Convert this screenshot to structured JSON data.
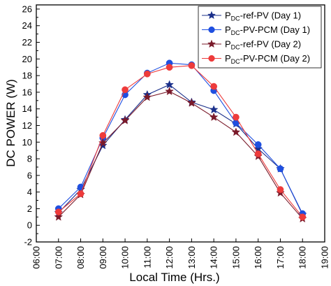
{
  "chart_data": {
    "type": "line",
    "xlabel": "Local Time (Hrs.)",
    "ylabel": "DC POWER (W)",
    "x_ticks": [
      "06:00",
      "07:00",
      "08:00",
      "09:00",
      "10:00",
      "11:00",
      "12:00",
      "13:00",
      "14:00",
      "15:00",
      "16:00",
      "17:00",
      "18:00",
      "19:00"
    ],
    "y_ticks": [
      "-2",
      "0",
      "2",
      "4",
      "6",
      "8",
      "10",
      "12",
      "14",
      "16",
      "18",
      "20",
      "22",
      "24",
      "26"
    ],
    "xlim": [
      "06:00",
      "19:00"
    ],
    "ylim": [
      -2,
      26.5
    ],
    "grid": false,
    "legend_position": "top-right",
    "x": [
      "07:00",
      "08:00",
      "09:00",
      "10:00",
      "11:00",
      "12:00",
      "13:00",
      "14:00",
      "15:00",
      "16:00",
      "17:00",
      "18:00"
    ],
    "series": [
      {
        "name_main": "P",
        "name_sub": "DC",
        "name_rest": "-ref-PV (Day 1)",
        "color": "#1a2f8a",
        "marker": "star",
        "values": [
          1.5,
          4.3,
          9.6,
          12.7,
          15.7,
          16.9,
          14.8,
          13.9,
          12.2,
          9.2,
          6.8,
          1.3
        ]
      },
      {
        "name_main": "P",
        "name_sub": "DC",
        "name_rest": "-PV-PCM (Day 1)",
        "color": "#1f4fe0",
        "marker": "circle",
        "values": [
          2.0,
          4.6,
          10.5,
          15.7,
          18.3,
          19.5,
          19.3,
          16.2,
          12.3,
          9.7,
          6.8,
          1.4
        ]
      },
      {
        "name_main": "P",
        "name_sub": "DC",
        "name_rest": "-ref-PV (Day 2)",
        "color": "#7a1a2a",
        "marker": "star",
        "values": [
          1.0,
          3.7,
          9.9,
          12.6,
          15.4,
          16.1,
          14.7,
          13.0,
          11.2,
          8.3,
          3.9,
          0.8
        ]
      },
      {
        "name_main": "P",
        "name_sub": "DC",
        "name_rest": "-PV-PCM (Day 2)",
        "color": "#ee3b3b",
        "marker": "circle",
        "values": [
          1.6,
          3.8,
          10.8,
          16.3,
          18.2,
          19.0,
          19.2,
          16.7,
          13.0,
          8.6,
          4.3,
          1.0
        ]
      }
    ]
  }
}
